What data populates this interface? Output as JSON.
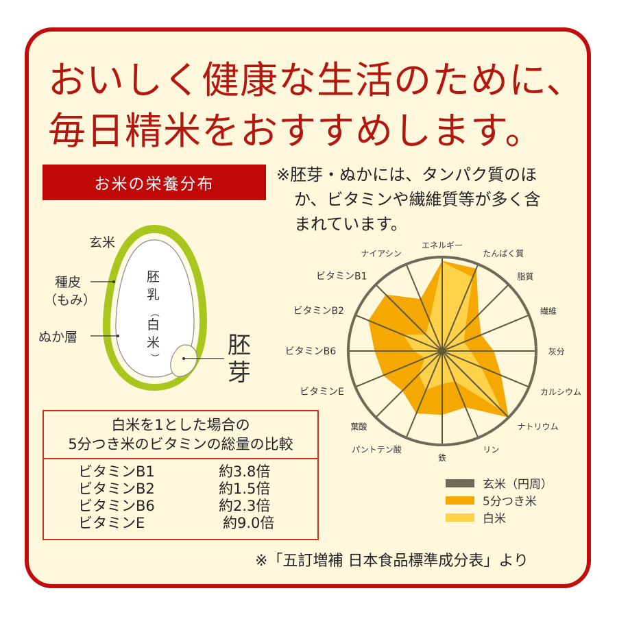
{
  "headline": {
    "line1": "おいしく健康な生活のために、",
    "line2": "毎日精米をおすすめします。"
  },
  "section_banner": "お米の栄養分布",
  "note": {
    "line1": "※胚芽・ぬかには、タンパク質のほ",
    "line2": "か、ビタミンや繊維質等が多く含",
    "line3": "まれています。"
  },
  "grain_diagram": {
    "labels": {
      "genmai": "玄米",
      "shuhi": "種皮",
      "momi": "（もみ）",
      "nukaso": "ぬか層",
      "hainyu_1": "胚",
      "hainyu_2": "乳",
      "hainyu_paren_open": "（",
      "hainyu_3": "白",
      "hainyu_4": "米",
      "hainyu_paren_close": "）",
      "haiga_1": "胚",
      "haiga_2": "芽"
    },
    "colors": {
      "bran": "#a8c61e",
      "endosperm": "#ffffff",
      "germ": "#fffbe0",
      "outline": "#666666"
    }
  },
  "comparison_table": {
    "title_line1": "白米を1とした場合の",
    "title_line2": "5分つき米のビタミンの総量の比較",
    "rows": [
      {
        "name": "ビタミンB1",
        "value": "約3.8倍"
      },
      {
        "name": "ビタミンB2",
        "value": "約1.5倍"
      },
      {
        "name": "ビタミンB6",
        "value": "約2.3倍"
      },
      {
        "name": "ビタミンE",
        "value": " 約9.0倍"
      }
    ]
  },
  "legend": [
    {
      "label": "玄米（円周）",
      "color": "#6e6a58"
    },
    {
      "label": "5分つき米",
      "color": "#f5a800"
    },
    {
      "label": "白米",
      "color": "#ffd24a"
    }
  ],
  "source": "※「五訂増補 日本食品標準成分表」より",
  "colors": {
    "border": "#c00d0d",
    "background": "#fff8dc",
    "headline": "#b3170f",
    "banner": "#c00808"
  },
  "chart_data": {
    "type": "radar",
    "title": "お米の栄養分布",
    "categories": [
      "エネルギー",
      "たんぱく質",
      "脂質",
      "繊維",
      "灰分",
      "カルシウム",
      "ナトリウム",
      "リン",
      "鉄",
      "パントテン酸",
      "葉酸",
      "ビタミンE",
      "ビタミンB6",
      "ビタミンB2",
      "ビタミンB1",
      "ナイアシン"
    ],
    "series": [
      {
        "name": "玄米（円周）",
        "values": [
          1,
          1,
          1,
          1,
          1,
          1,
          1,
          1,
          1,
          1,
          1,
          1,
          1,
          1,
          1,
          1
        ],
        "color": "#6e6a58"
      },
      {
        "name": "5分つき米",
        "values": [
          0.96,
          0.95,
          0.55,
          0.45,
          0.55,
          0.68,
          1.0,
          0.65,
          0.68,
          0.72,
          0.6,
          0.68,
          0.72,
          0.85,
          0.85,
          0.6
        ],
        "color": "#f5a800"
      },
      {
        "name": "白米",
        "values": [
          0.95,
          0.85,
          0.35,
          0.25,
          0.3,
          0.45,
          0.9,
          0.35,
          0.35,
          0.45,
          0.35,
          0.2,
          0.3,
          0.45,
          0.25,
          0.35
        ],
        "color": "#ffd24a"
      }
    ],
    "range": [
      0,
      1
    ],
    "note": "Values normalized so that 玄米 (brown rice) = outer circle = 1"
  }
}
